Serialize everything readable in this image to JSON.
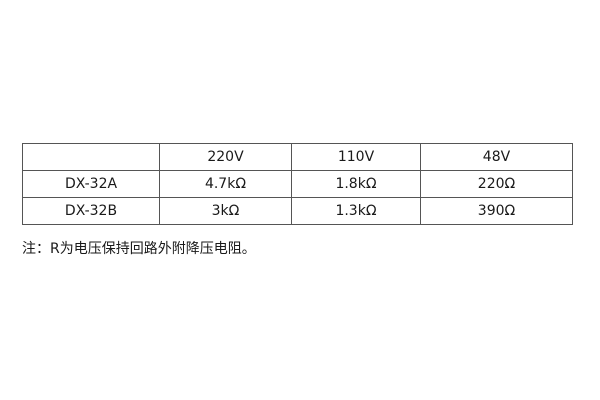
{
  "table": {
    "headers": [
      "",
      "220V",
      "110V",
      "48V"
    ],
    "rows": [
      [
        "DX-32A",
        "4.7kΩ",
        "1.8kΩ",
        "220Ω"
      ],
      [
        "DX-32B",
        "3kΩ",
        "1.3kΩ",
        "390Ω"
      ]
    ]
  },
  "note": "注：R为电压保持回路外附降压电阻。"
}
